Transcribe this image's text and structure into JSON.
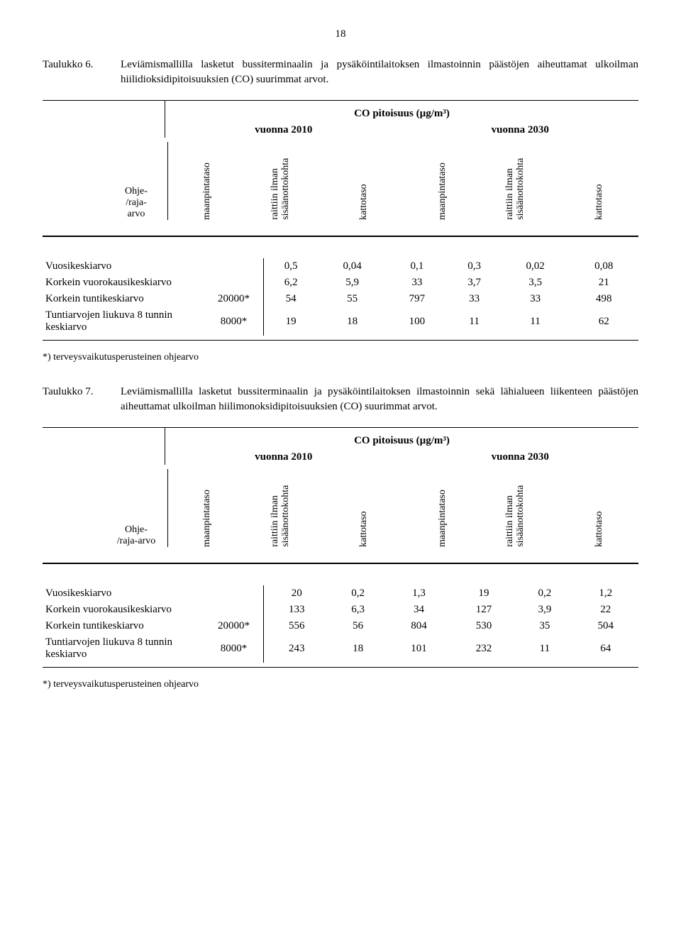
{
  "page_number": "18",
  "table6": {
    "caption_label": "Taulukko 6.",
    "caption_text": "Leviämismallilla lasketut bussiterminaalin ja pysäköintilaitoksen ilmastoinnin päästöjen aiheuttamat ulkoilman hiilidioksidipitoisuuksien (CO) suurimmat arvot.",
    "unit_title": "CO pitoisuus (µg/m³)",
    "year_a": "vuonna 2010",
    "year_b": "vuonna 2030",
    "ohje_header": "Ohje-\n/raja-\narvo",
    "cols": [
      "maanpintataso",
      "raittiin ilman sisäänottokohta",
      "kattotaso",
      "maanpintataso",
      "raittiin ilman sisäänottokohta",
      "kattotaso"
    ],
    "rows": [
      {
        "label": "Vuosikeskiarvo",
        "ohje": "",
        "vals": [
          "0,5",
          "0,04",
          "0,1",
          "0,3",
          "0,02",
          "0,08"
        ]
      },
      {
        "label": "Korkein vuorokausikeskiarvo",
        "ohje": "",
        "vals": [
          "6,2",
          "5,9",
          "33",
          "3,7",
          "3,5",
          "21"
        ]
      },
      {
        "label": "Korkein tuntikeskiarvo",
        "ohje": "20000*",
        "vals": [
          "54",
          "55",
          "797",
          "33",
          "33",
          "498"
        ]
      },
      {
        "label": "Tuntiarvojen liukuva 8 tunnin keskiarvo",
        "ohje": "8000*",
        "vals": [
          "19",
          "18",
          "100",
          "11",
          "11",
          "62"
        ]
      }
    ],
    "footnote": "*) terveysvaikutusperusteinen ohjearvo"
  },
  "table7": {
    "caption_label": "Taulukko 7.",
    "caption_text": "Leviämismallilla lasketut bussiterminaalin ja pysäköintilaitoksen ilmastoinnin sekä lähialueen liikenteen päästöjen aiheuttamat ulkoilman hiilimonoksidipitoisuuksien (CO) suurimmat arvot.",
    "unit_title": "CO pitoisuus (µg/m³)",
    "year_a": "vuonna 2010",
    "year_b": "vuonna 2030",
    "ohje_header": "Ohje-\n/raja-arvo",
    "cols": [
      "maanpintataso",
      "raittiin ilman sisäänottokohta",
      "kattotaso",
      "maanpintataso",
      "raittiin ilman sisäänottokohta",
      "kattotaso"
    ],
    "rows": [
      {
        "label": "Vuosikeskiarvo",
        "ohje": "",
        "vals": [
          "20",
          "0,2",
          "1,3",
          "19",
          "0,2",
          "1,2"
        ]
      },
      {
        "label": "Korkein vuorokausikeskiarvo",
        "ohje": "",
        "vals": [
          "133",
          "6,3",
          "34",
          "127",
          "3,9",
          "22"
        ]
      },
      {
        "label": "Korkein tuntikeskiarvo",
        "ohje": "20000*",
        "vals": [
          "556",
          "56",
          "804",
          "530",
          "35",
          "504"
        ]
      },
      {
        "label": "Tuntiarvojen liukuva 8 tunnin keskiarvo",
        "ohje": "8000*",
        "vals": [
          "243",
          "18",
          "101",
          "232",
          "11",
          "64"
        ]
      }
    ],
    "footnote": "*) terveysvaikutusperusteinen ohjearvo"
  }
}
